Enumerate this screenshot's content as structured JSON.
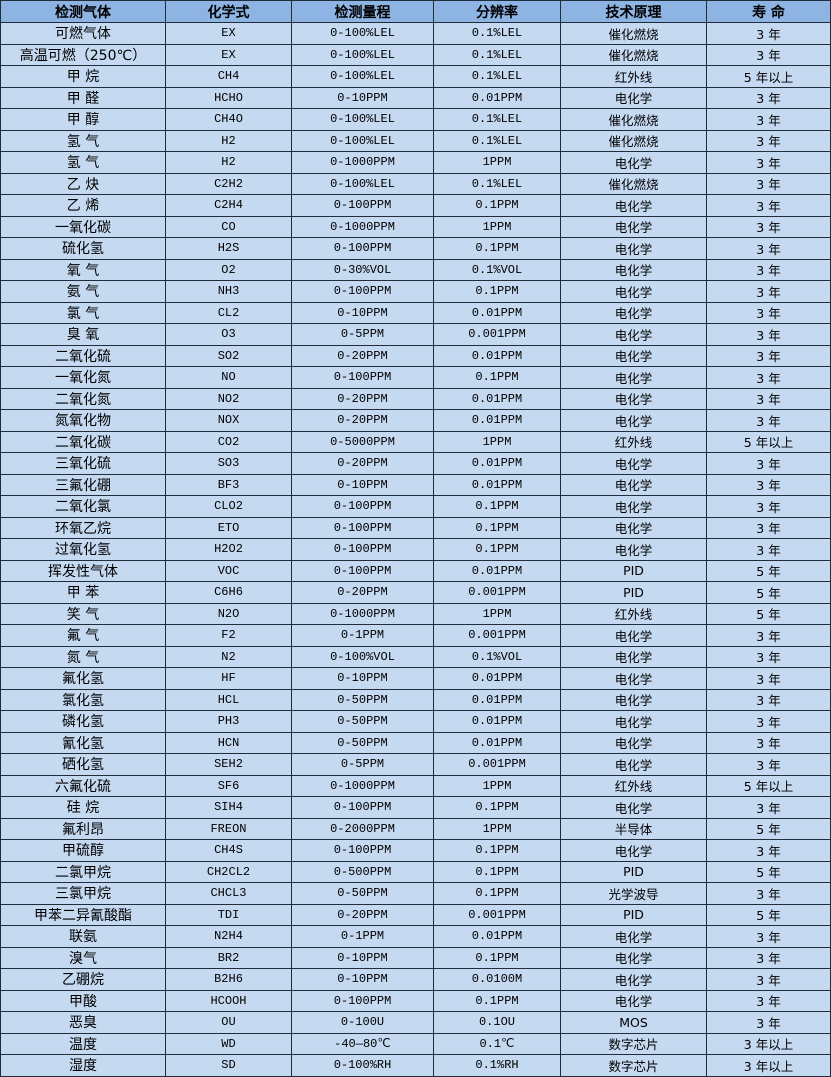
{
  "headers": [
    "检测气体",
    "化学式",
    "检测量程",
    "分辨率",
    "技术原理",
    "寿 命"
  ],
  "rows": [
    [
      "可燃气体",
      "EX",
      "0-100%LEL",
      "0.1%LEL",
      "催化燃烧",
      "3 年"
    ],
    [
      "高温可燃（250℃）",
      "EX",
      "0-100%LEL",
      "0.1%LEL",
      "催化燃烧",
      "3 年"
    ],
    [
      "甲 烷",
      "CH4",
      "0-100%LEL",
      "0.1%LEL",
      "红外线",
      "5 年以上"
    ],
    [
      "甲 醛",
      "HCHO",
      "0-10PPM",
      "0.01PPM",
      "电化学",
      "3 年"
    ],
    [
      "甲 醇",
      "CH4O",
      "0-100%LEL",
      "0.1%LEL",
      "催化燃烧",
      "3 年"
    ],
    [
      "氢 气",
      "H2",
      "0-100%LEL",
      "0.1%LEL",
      "催化燃烧",
      "3 年"
    ],
    [
      "氢 气",
      "H2",
      "0-1000PPM",
      "1PPM",
      "电化学",
      "3 年"
    ],
    [
      "乙 炔",
      "C2H2",
      "0-100%LEL",
      "0.1%LEL",
      "催化燃烧",
      "3 年"
    ],
    [
      "乙 烯",
      "C2H4",
      "0-100PPM",
      "0.1PPM",
      "电化学",
      "3 年"
    ],
    [
      "一氧化碳",
      "CO",
      "0-1000PPM",
      "1PPM",
      "电化学",
      "3 年"
    ],
    [
      "硫化氢",
      "H2S",
      "0-100PPM",
      "0.1PPM",
      "电化学",
      "3 年"
    ],
    [
      "氧 气",
      "O2",
      "0-30%VOL",
      "0.1%VOL",
      "电化学",
      "3 年"
    ],
    [
      "氨 气",
      "NH3",
      "0-100PPM",
      "0.1PPM",
      "电化学",
      "3 年"
    ],
    [
      "氯 气",
      "CL2",
      "0-10PPM",
      "0.01PPM",
      "电化学",
      "3 年"
    ],
    [
      "臭 氧",
      "O3",
      "0-5PPM",
      "0.001PPM",
      "电化学",
      "3 年"
    ],
    [
      "二氧化硫",
      "SO2",
      "0-20PPM",
      "0.01PPM",
      "电化学",
      "3 年"
    ],
    [
      "一氧化氮",
      "NO",
      "0-100PPM",
      "0.1PPM",
      "电化学",
      "3 年"
    ],
    [
      "二氧化氮",
      "NO2",
      "0-20PPM",
      "0.01PPM",
      "电化学",
      "3 年"
    ],
    [
      "氮氧化物",
      "NOX",
      "0-20PPM",
      "0.01PPM",
      "电化学",
      "3 年"
    ],
    [
      "二氧化碳",
      "CO2",
      "0-5000PPM",
      "1PPM",
      "红外线",
      "5 年以上"
    ],
    [
      "三氧化硫",
      "SO3",
      "0-20PPM",
      "0.01PPM",
      "电化学",
      "3 年"
    ],
    [
      "三氟化硼",
      "BF3",
      "0-10PPM",
      "0.01PPM",
      "电化学",
      "3 年"
    ],
    [
      "二氧化氯",
      "CLO2",
      "0-100PPM",
      "0.1PPM",
      "电化学",
      "3 年"
    ],
    [
      "环氧乙烷",
      "ETO",
      "0-100PPM",
      "0.1PPM",
      "电化学",
      "3 年"
    ],
    [
      "过氧化氢",
      "H2O2",
      "0-100PPM",
      "0.1PPM",
      "电化学",
      "3 年"
    ],
    [
      "挥发性气体",
      "VOC",
      "0-100PPM",
      "0.01PPM",
      "PID",
      "5 年"
    ],
    [
      "甲 苯",
      "C6H6",
      "0-20PPM",
      "0.001PPM",
      "PID",
      "5 年"
    ],
    [
      "笑 气",
      "N2O",
      "0-1000PPM",
      "1PPM",
      "红外线",
      "5 年"
    ],
    [
      "氟 气",
      "F2",
      "0-1PPM",
      "0.001PPM",
      "电化学",
      "3 年"
    ],
    [
      "氮 气",
      "N2",
      "0-100%VOL",
      "0.1%VOL",
      "电化学",
      "3 年"
    ],
    [
      "氟化氢",
      "HF",
      "0-10PPM",
      "0.01PPM",
      "电化学",
      "3 年"
    ],
    [
      "氯化氢",
      "HCL",
      "0-50PPM",
      "0.01PPM",
      "电化学",
      "3 年"
    ],
    [
      "磷化氢",
      "PH3",
      "0-50PPM",
      "0.01PPM",
      "电化学",
      "3 年"
    ],
    [
      "氰化氢",
      "HCN",
      "0-50PPM",
      "0.01PPM",
      "电化学",
      "3 年"
    ],
    [
      "硒化氢",
      "SEH2",
      "0-5PPM",
      "0.001PPM",
      "电化学",
      "3 年"
    ],
    [
      "六氟化硫",
      "SF6",
      "0-1000PPM",
      "1PPM",
      "红外线",
      "5 年以上"
    ],
    [
      "硅 烷",
      "SIH4",
      "0-100PPM",
      "0.1PPM",
      "电化学",
      "3 年"
    ],
    [
      "氟利昂",
      "FREON",
      "0-2000PPM",
      "1PPM",
      "半导体",
      "5 年"
    ],
    [
      "甲硫醇",
      "CH4S",
      "0-100PPM",
      "0.1PPM",
      "电化学",
      "3 年"
    ],
    [
      "二氯甲烷",
      "CH2CL2",
      "0-500PPM",
      "0.1PPM",
      "PID",
      "5 年"
    ],
    [
      "三氯甲烷",
      "CHCL3",
      "0-50PPM",
      "0.1PPM",
      "光学波导",
      "3 年"
    ],
    [
      "甲苯二异氰酸酯",
      "TDI",
      "0-20PPM",
      "0.001PPM",
      "PID",
      "5 年"
    ],
    [
      "联氨",
      "N2H4",
      "0-1PPM",
      "0.01PPM",
      "电化学",
      "3 年"
    ],
    [
      "溴气",
      "BR2",
      "0-10PPM",
      "0.1PPM",
      "电化学",
      "3 年"
    ],
    [
      "乙硼烷",
      "B2H6",
      "0-10PPM",
      "0.0100M",
      "电化学",
      "3 年"
    ],
    [
      "甲酸",
      "HCOOH",
      "0-100PPM",
      "0.1PPM",
      "电化学",
      "3 年"
    ],
    [
      "恶臭",
      "OU",
      "0-100U",
      "0.1OU",
      "MOS",
      "3 年"
    ],
    [
      "温度",
      "WD",
      "-40—80℃",
      "0.1℃",
      "数字芯片",
      "3 年以上"
    ],
    [
      "湿度",
      "SD",
      "0-100%RH",
      "0.1%RH",
      "数字芯片",
      "3 年以上"
    ]
  ],
  "colors": {
    "header_bg": "#8db4e2",
    "cell_bg": "#c5d9f1",
    "border": "#1f2d3d"
  }
}
